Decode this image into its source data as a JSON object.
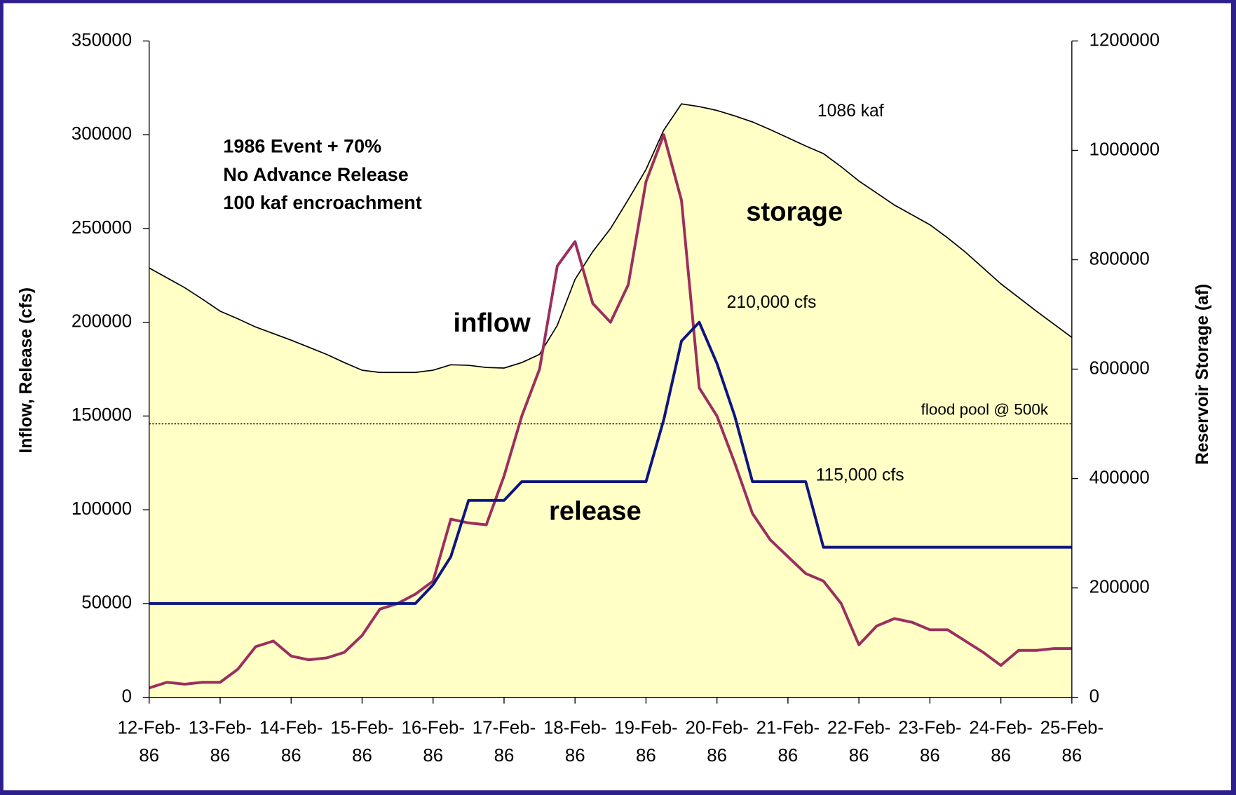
{
  "chart_data": {
    "type": "line",
    "y_label": "Inflow, Release (cfs)",
    "y2_label": "Reservoir Storage (af)",
    "categories": [
      "12-Feb-86",
      null,
      null,
      null,
      "13-Feb-86",
      null,
      null,
      null,
      "14-Feb-86",
      null,
      null,
      null,
      "15-Feb-86",
      null,
      null,
      null,
      "16-Feb-86",
      null,
      null,
      null,
      "17-Feb-86",
      null,
      null,
      null,
      "18-Feb-86",
      null,
      null,
      null,
      "19-Feb-86",
      null,
      null,
      null,
      "20-Feb-86",
      null,
      null,
      null,
      "21-Feb-86",
      null,
      null,
      null,
      "22-Feb-86",
      null,
      null,
      null,
      "23-Feb-86",
      null,
      null,
      null,
      "24-Feb-86",
      null,
      null,
      null,
      "25-Feb-86"
    ],
    "ylim": [
      0,
      350000
    ],
    "yticks": [
      0,
      50000,
      100000,
      150000,
      200000,
      250000,
      300000,
      350000
    ],
    "y2lim": [
      0,
      1200000
    ],
    "y2ticks": [
      0,
      200000,
      400000,
      600000,
      800000,
      1000000,
      1200000
    ],
    "series": [
      {
        "name": "storage",
        "color": "#ffffc6",
        "axis": "y2",
        "values": [
          785000,
          767000,
          749000,
          728000,
          706000,
          692000,
          677000,
          665000,
          653000,
          640000,
          627000,
          612000,
          598000,
          594000,
          594000,
          594000,
          598000,
          608000,
          607000,
          603000,
          602000,
          612000,
          627000,
          680000,
          764000,
          815000,
          857000,
          910000,
          965000,
          1037000,
          1085000,
          1080000,
          1073000,
          1063000,
          1052000,
          1038000,
          1023000,
          1008000,
          994000,
          970000,
          944000,
          922000,
          900000,
          882000,
          864000,
          840000,
          814000,
          785000,
          756000,
          731000,
          706000,
          682000,
          658000
        ]
      },
      {
        "name": "inflow",
        "color": "#9b2f5e",
        "values": [
          5000,
          8000,
          7000,
          8000,
          8000,
          15000,
          27000,
          30000,
          22000,
          20000,
          21000,
          24000,
          33000,
          47000,
          50000,
          55000,
          62000,
          95000,
          93000,
          92000,
          118000,
          150000,
          175000,
          230000,
          243000,
          210000,
          200000,
          220000,
          275000,
          300000,
          265000,
          165000,
          150000,
          125000,
          98000,
          84000,
          75000,
          66000,
          62000,
          50000,
          28000,
          38000,
          42000,
          40000,
          36000,
          36000,
          30000,
          24000,
          17000,
          25000,
          25000,
          26000,
          26000
        ]
      },
      {
        "name": "release",
        "color": "#0d1580",
        "values": [
          50000,
          50000,
          50000,
          50000,
          50000,
          50000,
          50000,
          50000,
          50000,
          50000,
          50000,
          50000,
          50000,
          50000,
          50000,
          50000,
          60000,
          75000,
          105000,
          105000,
          105000,
          115000,
          115000,
          115000,
          115000,
          115000,
          115000,
          115000,
          115000,
          148000,
          190000,
          200000,
          178000,
          150000,
          115000,
          115000,
          115000,
          115000,
          80000,
          80000,
          80000,
          80000,
          80000,
          80000,
          80000,
          80000,
          80000,
          80000,
          80000,
          80000,
          80000,
          80000,
          80000
        ]
      }
    ],
    "flood_pool": {
      "value": 500000,
      "label": "flood pool @ 500k",
      "axis": "y2"
    },
    "annotations": [
      "1986 Event + 70%",
      "No Advance Release",
      "100 kaf encroachment",
      "1086 kaf",
      "210,000 cfs",
      "115,000 cfs"
    ]
  }
}
